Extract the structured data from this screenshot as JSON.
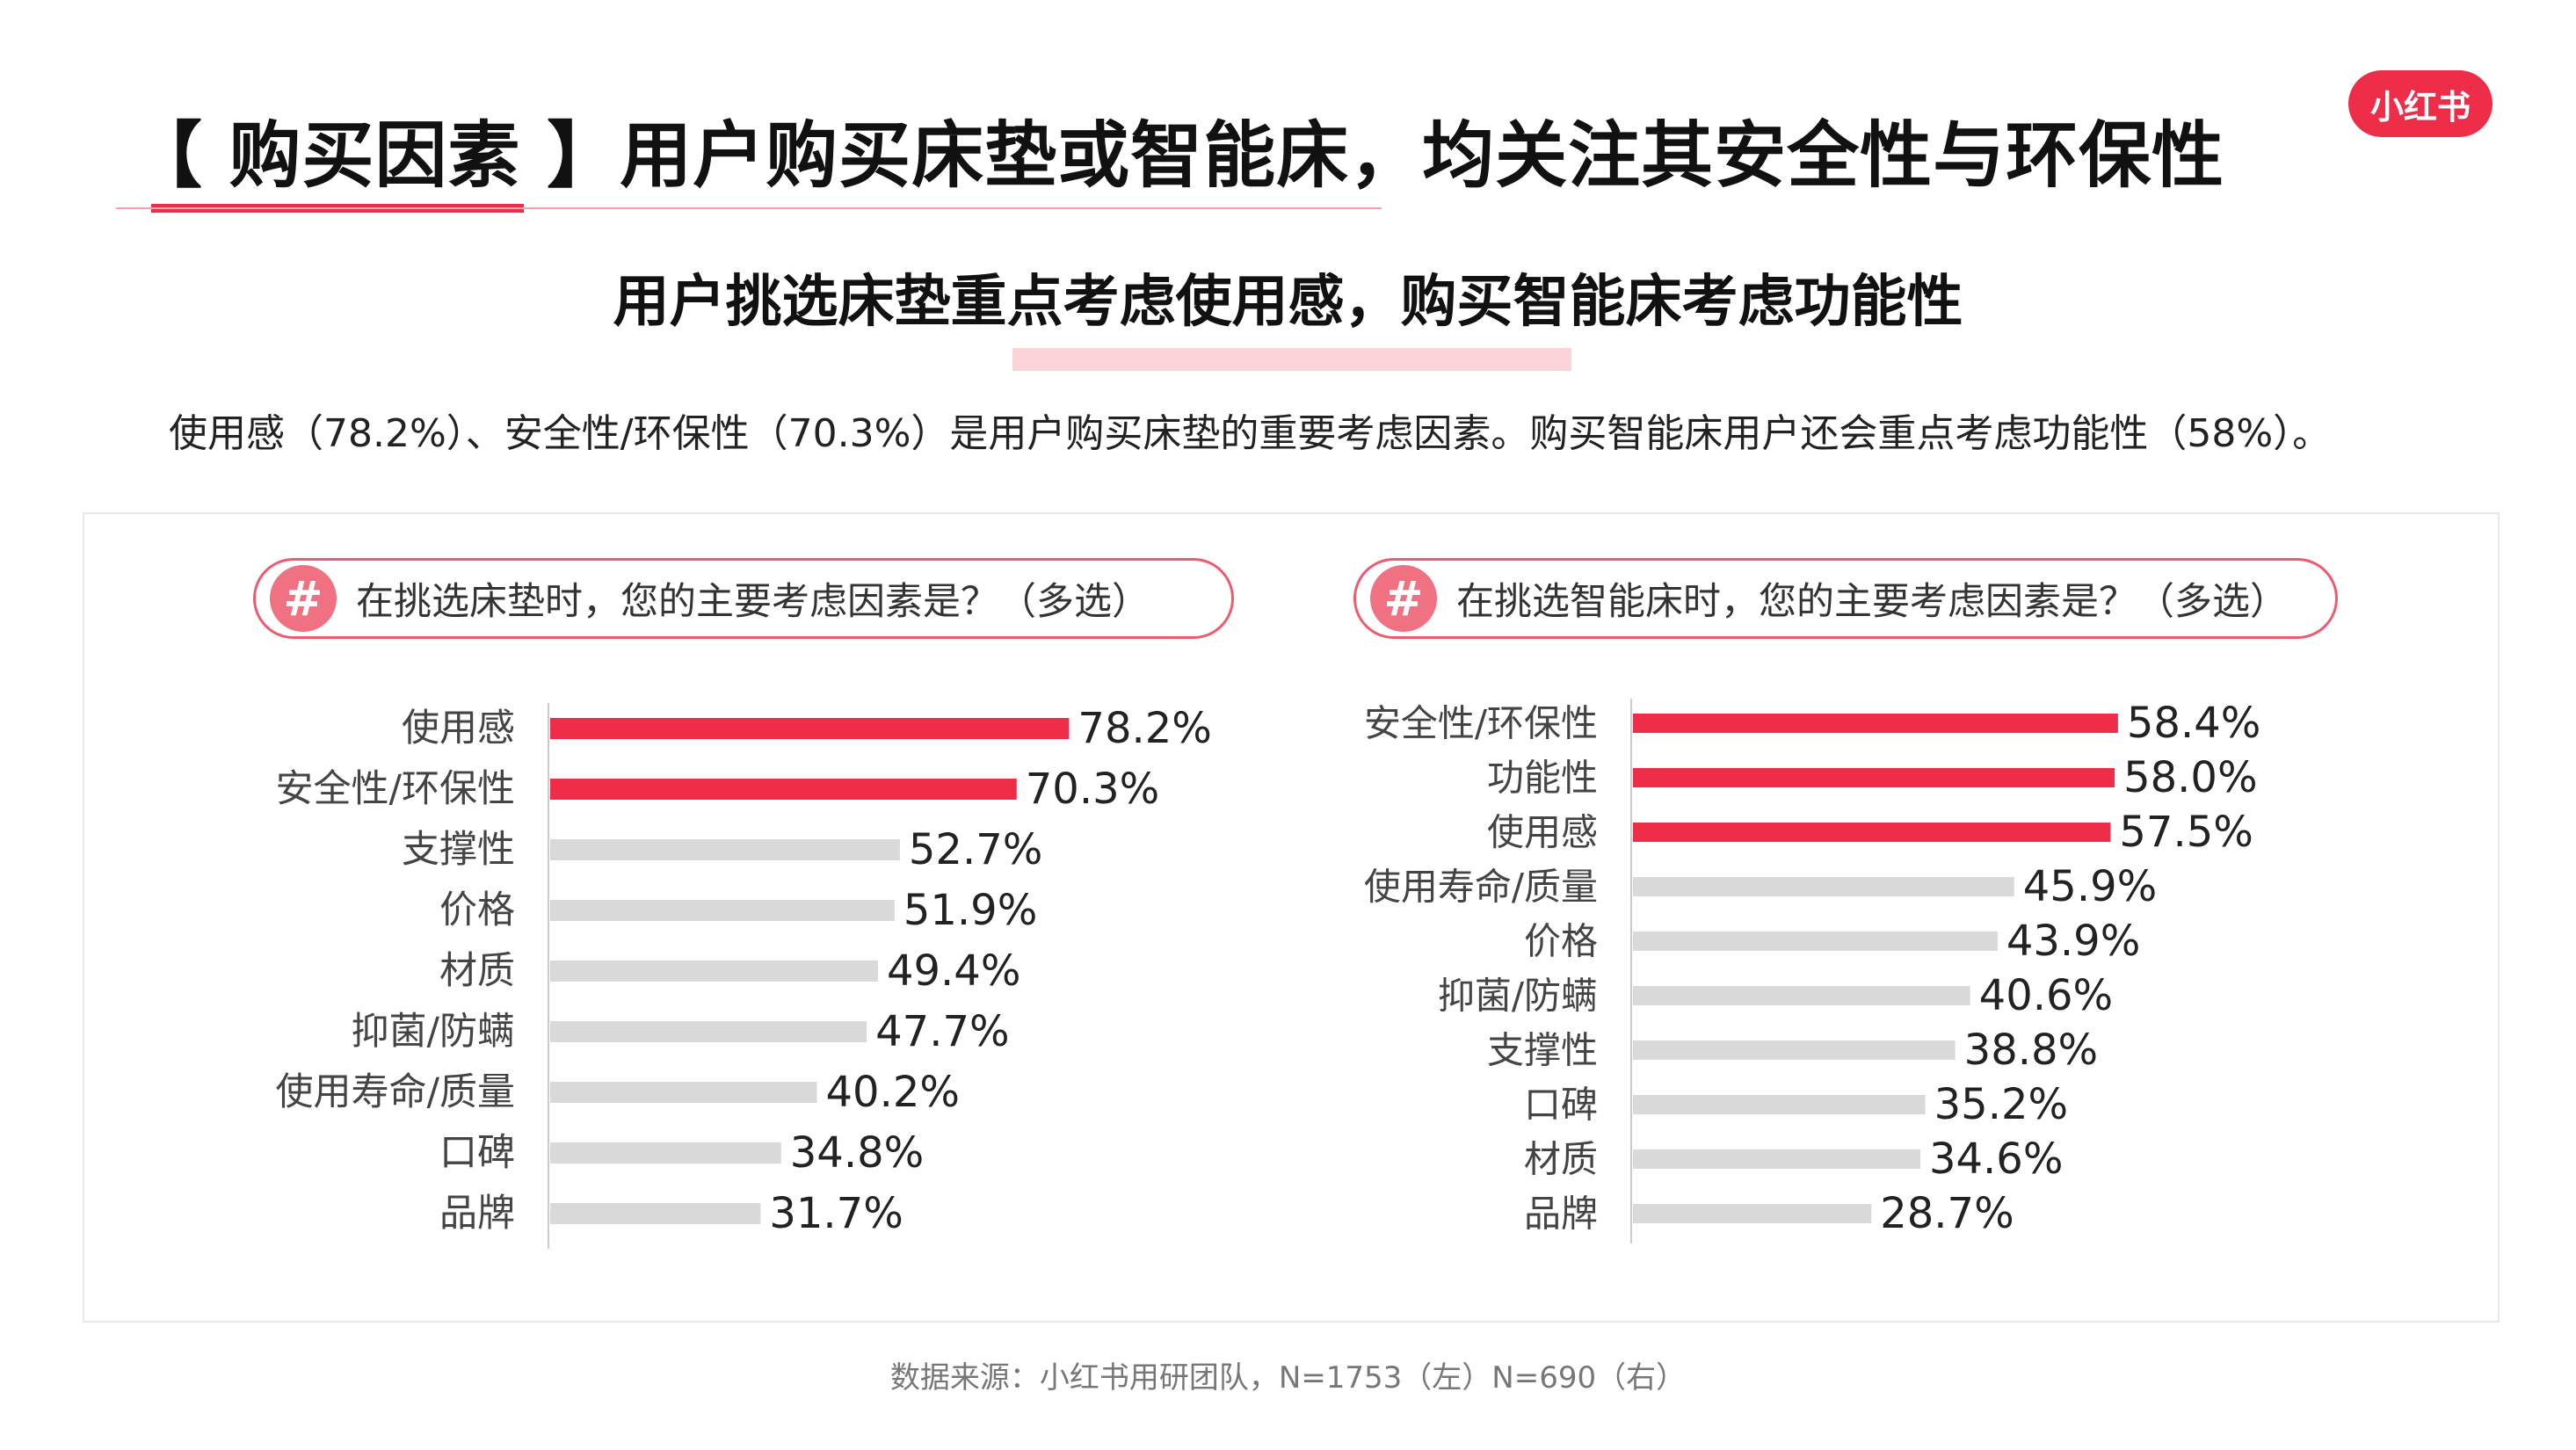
{
  "header": {
    "title": "【 购买因素 】用户购买床垫或智能床，均关注其安全性与环保性",
    "brand": "小红书",
    "subtitle": "用户挑选床垫重点考虑使用感，购买智能床考虑功能性",
    "summary": "使用感（78.2%）、安全性/环保性（70.3%）是用户购买床垫的重要考虑因素。购买智能床用户还会重点考虑功能性（58%）。"
  },
  "questions": {
    "left": "在挑选床垫时，您的主要考虑因素是？（多选）",
    "right": "在挑选智能床时，您的主要考虑因素是？（多选）"
  },
  "footer": {
    "source": "数据来源：小红书用研团队，N=1753（左）N=690（右）"
  },
  "colors": {
    "accent": "#ee2d48",
    "highlight_bar": "#ee2d48",
    "normal_bar": "#d9d9d9"
  },
  "chart_data": [
    {
      "type": "bar",
      "orientation": "horizontal",
      "title": "在挑选床垫时，您的主要考虑因素是？（多选）",
      "categories": [
        "使用感",
        "安全性/环保性",
        "支撑性",
        "价格",
        "材质",
        "抑菌/防螨",
        "使用寿命/质量",
        "口碑",
        "品牌"
      ],
      "values": [
        78.2,
        70.3,
        52.7,
        51.9,
        49.4,
        47.7,
        40.2,
        34.8,
        31.7
      ],
      "labels": [
        "78.2%",
        "70.3%",
        "52.7%",
        "51.9%",
        "49.4%",
        "47.7%",
        "40.2%",
        "34.8%",
        "31.7%"
      ],
      "highlighted": [
        0,
        1
      ],
      "unit": "%"
    },
    {
      "type": "bar",
      "orientation": "horizontal",
      "title": "在挑选智能床时，您的主要考虑因素是？（多选）",
      "categories": [
        "安全性/环保性",
        "功能性",
        "使用感",
        "使用寿命/质量",
        "价格",
        "抑菌/防螨",
        "支撑性",
        "口碑",
        "材质",
        "品牌"
      ],
      "values": [
        58.4,
        58.0,
        57.5,
        45.9,
        43.9,
        40.6,
        38.8,
        35.2,
        34.6,
        28.7
      ],
      "labels": [
        "58.4%",
        "58.0%",
        "57.5%",
        "45.9%",
        "43.9%",
        "40.6%",
        "38.8%",
        "35.2%",
        "34.6%",
        "28.7%"
      ],
      "highlighted": [
        0,
        1,
        2
      ],
      "unit": "%"
    }
  ]
}
